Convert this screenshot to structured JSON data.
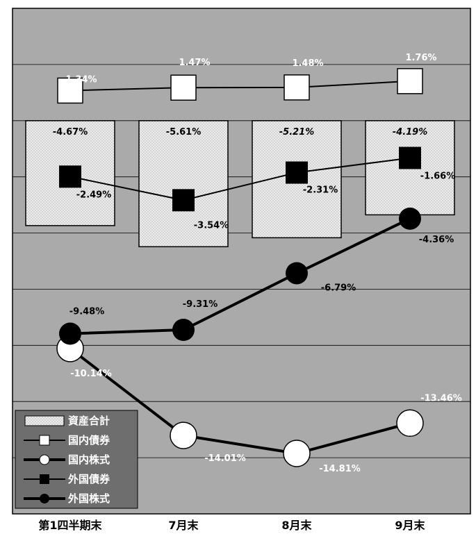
{
  "chart_data": {
    "type": "bar+line",
    "categories": [
      "第1四半期末",
      "7月末",
      "8月末",
      "9月末"
    ],
    "ylim": [
      -17.5,
      5
    ],
    "grid": true,
    "legend_position": "bottom-left",
    "series": [
      {
        "name": "資産合計",
        "kind": "bar",
        "values": [
          -4.67,
          -5.61,
          -5.21,
          -4.19
        ],
        "labels": [
          "-4.67%",
          "-5.61%",
          "-5.21%",
          "-4.19%"
        ]
      },
      {
        "name": "国内債券",
        "kind": "line-square-white",
        "values": [
          1.34,
          1.47,
          1.48,
          1.76
        ],
        "labels": [
          "1.34%",
          "1.47%",
          "1.48%",
          "1.76%"
        ]
      },
      {
        "name": "国内株式",
        "kind": "line-circle-white",
        "values": [
          -10.14,
          -14.01,
          -14.81,
          -13.46
        ],
        "labels": [
          "-10.14%",
          "-14.01%",
          "-14.81%",
          "-13.46%"
        ]
      },
      {
        "name": "外国債券",
        "kind": "line-square-black",
        "values": [
          -2.49,
          -3.54,
          -2.31,
          -1.66
        ],
        "labels": [
          "-2.49%",
          "-3.54%",
          "-2.31%",
          "-1.66%"
        ]
      },
      {
        "name": "外国株式",
        "kind": "line-circle-black",
        "values": [
          -9.48,
          -9.31,
          -6.79,
          -4.36
        ],
        "labels": [
          "-9.48%",
          "-9.31%",
          "-6.79%",
          "-4.36%"
        ]
      }
    ],
    "colors": {
      "plot_bg": "#aaaaaa",
      "bar_fill": "#e6e6e6",
      "line": "#000000",
      "legend_bg": "#6e6e6e"
    }
  }
}
